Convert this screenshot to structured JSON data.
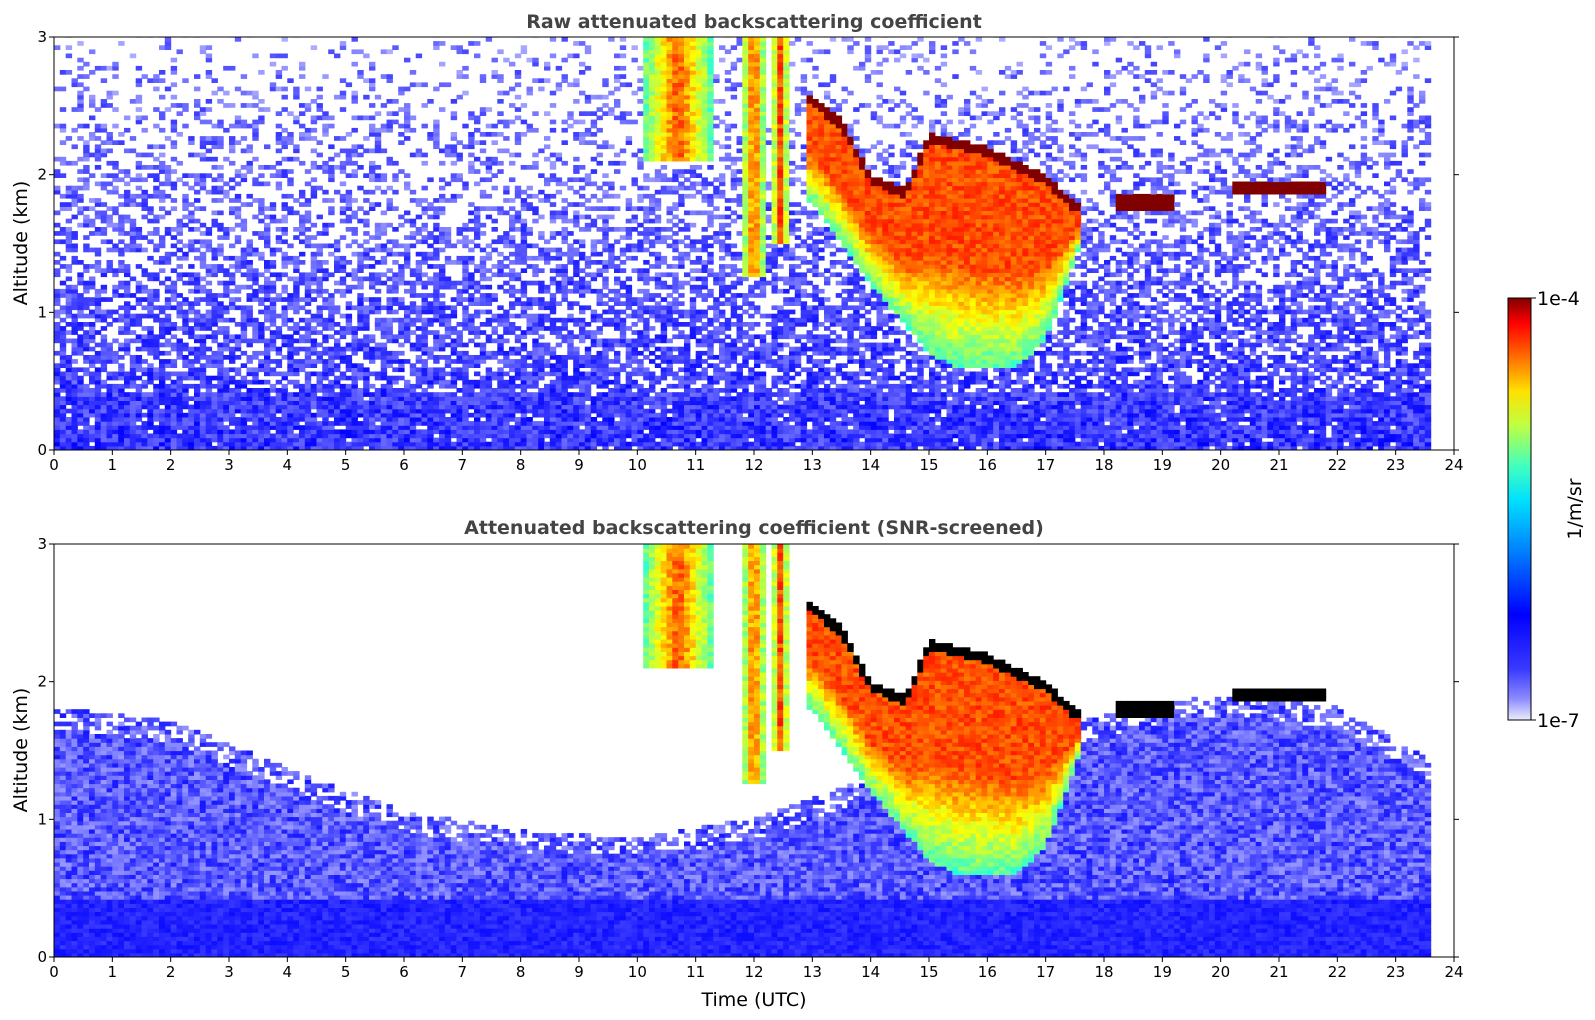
{
  "chart_data": [
    {
      "type": "heatmap",
      "title": "Raw attenuated backscattering coefficient",
      "xlabel": "",
      "ylabel": "Altitude (km)",
      "xlim": [
        0,
        24
      ],
      "ylim": [
        0,
        3
      ],
      "xticks": [
        "0",
        "1",
        "2",
        "3",
        "4",
        "5",
        "6",
        "7",
        "8",
        "9",
        "10",
        "11",
        "12",
        "13",
        "14",
        "15",
        "16",
        "17",
        "18",
        "19",
        "20",
        "21",
        "22",
        "23",
        "24"
      ],
      "yticks": [
        "0",
        "1",
        "2",
        "3"
      ],
      "data_extent_hours": [
        0,
        23.6
      ],
      "features": {
        "aerosol_layer_top_km": 0.4,
        "cloud_columns": [
          {
            "x_start": 10.1,
            "x_end": 11.3,
            "top_km": 3.0,
            "base_km": 2.1
          },
          {
            "x_start": 11.8,
            "x_end": 12.2,
            "top_km": 3.0,
            "base_km": 1.25
          },
          {
            "x_start": 12.3,
            "x_end": 12.6,
            "top_km": 3.0,
            "base_km": 1.5
          }
        ],
        "thick_cloud_top_km": [
          [
            12.9,
            2.6
          ],
          [
            13.5,
            2.4
          ],
          [
            14.0,
            2.0
          ],
          [
            14.6,
            1.9
          ],
          [
            15.0,
            2.3
          ],
          [
            16.0,
            2.2
          ],
          [
            17.0,
            2.0
          ],
          [
            17.5,
            1.8
          ]
        ],
        "thick_cloud_base_km": [
          [
            13.0,
            1.8
          ],
          [
            14.0,
            1.2
          ],
          [
            15.0,
            0.7
          ],
          [
            15.5,
            0.6
          ],
          [
            16.5,
            0.6
          ],
          [
            17.0,
            0.8
          ],
          [
            17.6,
            1.5
          ]
        ],
        "stratocumulus_layer": [
          {
            "x_start": 18.2,
            "x_end": 19.2,
            "top_km": 1.85,
            "base_km": 1.75
          },
          {
            "x_start": 20.2,
            "x_end": 21.8,
            "top_km": 1.95,
            "base_km": 1.85
          }
        ]
      }
    },
    {
      "type": "heatmap",
      "title": "Attenuated backscattering coefficient (SNR-screened)",
      "xlabel": "Time (UTC)",
      "ylabel": "Altitude (km)",
      "xlim": [
        0,
        24
      ],
      "ylim": [
        0,
        3
      ],
      "xticks": [
        "0",
        "1",
        "2",
        "3",
        "4",
        "5",
        "6",
        "7",
        "8",
        "9",
        "10",
        "11",
        "12",
        "13",
        "14",
        "15",
        "16",
        "17",
        "18",
        "19",
        "20",
        "21",
        "22",
        "23",
        "24"
      ],
      "yticks": [
        "0",
        "1",
        "2",
        "3"
      ],
      "data_extent_hours": [
        0,
        23.6
      ],
      "boundary_layer_top_km": [
        [
          0,
          1.8
        ],
        [
          2,
          1.7
        ],
        [
          4,
          1.35
        ],
        [
          6,
          1.05
        ],
        [
          8,
          0.9
        ],
        [
          10,
          0.85
        ],
        [
          12,
          1.0
        ],
        [
          14,
          1.3
        ],
        [
          16,
          1.5
        ],
        [
          18,
          1.75
        ],
        [
          20,
          1.9
        ],
        [
          22,
          1.8
        ],
        [
          23.6,
          1.4
        ]
      ]
    }
  ],
  "colorbar": {
    "label": "1/m/sr",
    "max_label": "1e-4",
    "min_label": "1e-7",
    "scale": "log",
    "colormap": "jet"
  },
  "colors": {
    "background": "#ffffff",
    "low": "#0000ff",
    "mid": "#00ff80",
    "high": "#ff0000",
    "saturated": "#800000",
    "screened_saturated": "#000000",
    "title": "#444444"
  }
}
